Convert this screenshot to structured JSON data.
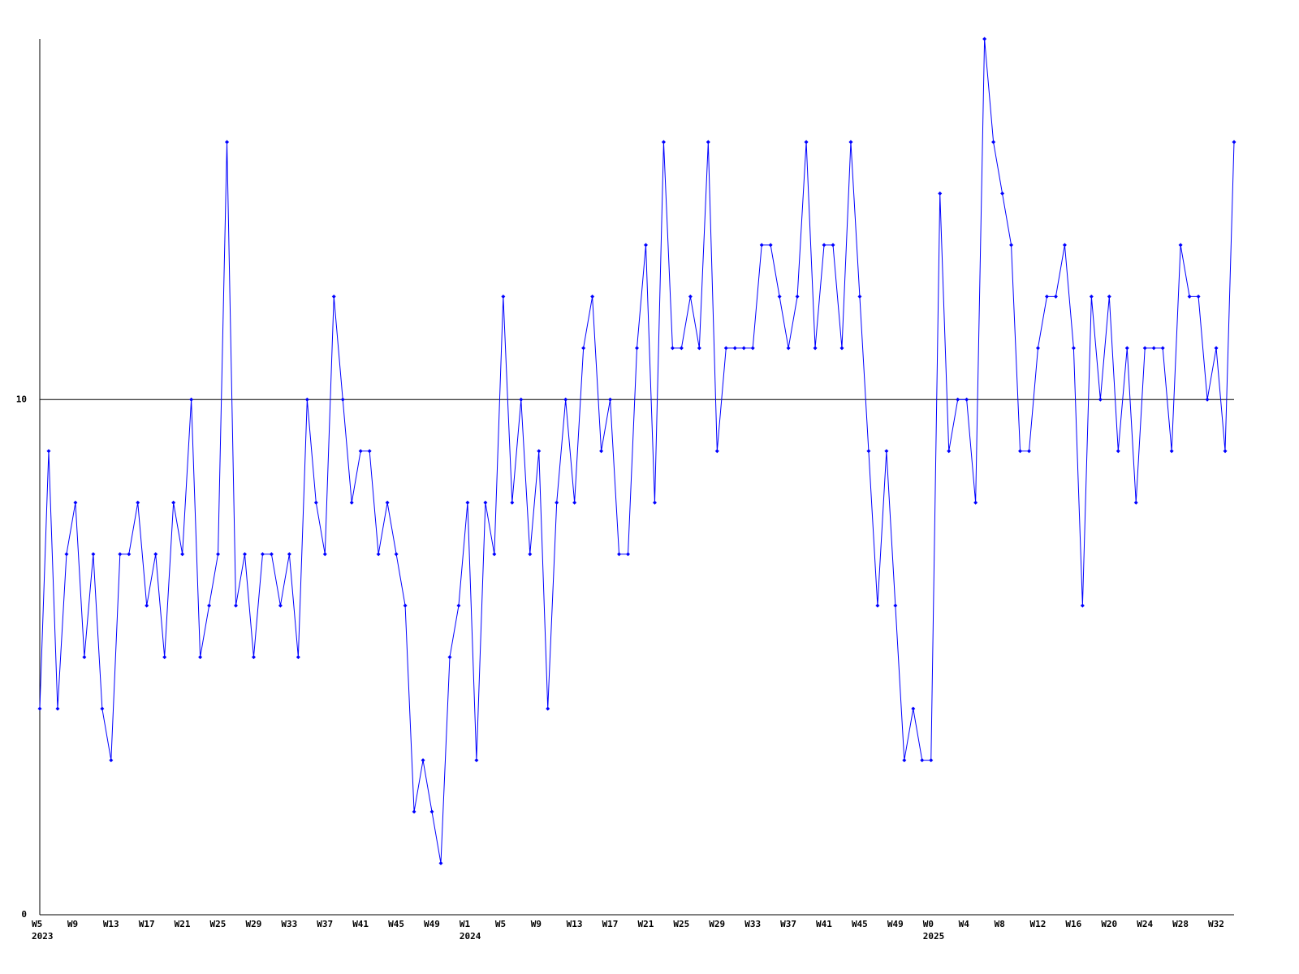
{
  "chart_data": {
    "type": "line",
    "categories": [
      "W5",
      null,
      null,
      null,
      "W9",
      null,
      null,
      null,
      "W13",
      null,
      null,
      null,
      "W17",
      null,
      null,
      null,
      "W21",
      null,
      null,
      null,
      "W25",
      null,
      null,
      null,
      "W29",
      null,
      null,
      null,
      "W33",
      null,
      null,
      null,
      "W37",
      null,
      null,
      null,
      "W41",
      null,
      null,
      null,
      "W45",
      null,
      null,
      null,
      "W49",
      null,
      null,
      null,
      "W1",
      null,
      null,
      null,
      "W5",
      null,
      null,
      null,
      "W9",
      null,
      null,
      null,
      "W13",
      null,
      null,
      null,
      "W17",
      null,
      null,
      null,
      "W21",
      null,
      null,
      null,
      "W25",
      null,
      null,
      null,
      "W29",
      null,
      null,
      null,
      "W33",
      null,
      null,
      null,
      "W37",
      null,
      null,
      null,
      "W41",
      null,
      null,
      null,
      "W45",
      null,
      null,
      null,
      "W49",
      null,
      null,
      null,
      "W0",
      null,
      null,
      null,
      "W4",
      null,
      null,
      null,
      "W8",
      null,
      null,
      null,
      "W12",
      null,
      null,
      null,
      "W16",
      null,
      null,
      null,
      "W20",
      null,
      null,
      null,
      "W24",
      null,
      null,
      null,
      "W28",
      null,
      null,
      null,
      "W32",
      null,
      null
    ],
    "years": [
      "2023",
      null,
      null,
      null,
      null,
      null,
      null,
      null,
      null,
      null,
      null,
      null,
      null,
      null,
      null,
      null,
      null,
      null,
      null,
      null,
      null,
      null,
      null,
      null,
      null,
      null,
      null,
      null,
      null,
      null,
      null,
      null,
      null,
      null,
      null,
      null,
      null,
      null,
      null,
      null,
      null,
      null,
      null,
      null,
      null,
      null,
      null,
      null,
      "2024",
      null,
      null,
      null,
      null,
      null,
      null,
      null,
      null,
      null,
      null,
      null,
      null,
      null,
      null,
      null,
      null,
      null,
      null,
      null,
      null,
      null,
      null,
      null,
      null,
      null,
      null,
      null,
      null,
      null,
      null,
      null,
      null,
      null,
      null,
      null,
      null,
      null,
      null,
      null,
      null,
      null,
      null,
      null,
      null,
      null,
      null,
      null,
      null,
      null,
      null,
      null,
      "2025",
      null,
      null,
      null,
      null,
      null,
      null,
      null,
      null,
      null,
      null,
      null,
      null,
      null,
      null,
      null,
      null,
      null,
      null,
      null,
      null,
      null,
      null,
      null,
      null,
      null,
      null,
      null,
      null,
      null,
      null,
      null,
      null,
      null,
      null
    ],
    "series": [
      {
        "color": "#0000ff",
        "values": [
          4,
          9,
          4,
          7,
          8,
          5,
          7,
          4,
          3,
          7,
          7,
          8,
          6,
          7,
          5,
          8,
          7,
          10,
          5,
          6,
          7,
          15,
          6,
          7,
          5,
          7,
          7,
          6,
          7,
          5,
          10,
          8,
          7,
          12,
          10,
          8,
          9,
          9,
          7,
          8,
          7,
          6,
          2,
          3,
          2,
          1,
          5,
          6,
          8,
          3,
          8,
          7,
          12,
          8,
          10,
          7,
          9,
          4,
          8,
          10,
          8,
          11,
          12,
          9,
          10,
          7,
          7,
          11,
          13,
          8,
          15,
          11,
          11,
          12,
          11,
          15,
          9,
          11,
          11,
          11,
          11,
          13,
          13,
          12,
          11,
          12,
          15,
          11,
          13,
          13,
          11,
          15,
          12,
          9,
          6,
          9,
          6,
          3,
          4,
          3,
          3,
          14,
          9,
          10,
          10,
          8,
          17,
          15,
          14,
          13,
          9,
          9,
          11,
          12,
          12,
          13,
          11,
          6,
          12,
          10,
          12,
          9,
          11,
          8,
          11,
          11,
          11,
          9,
          13,
          12,
          12,
          10,
          11,
          9,
          15
        ]
      }
    ],
    "ylim": [
      0,
      17
    ],
    "yticks": [
      0,
      10
    ],
    "grid": true
  }
}
